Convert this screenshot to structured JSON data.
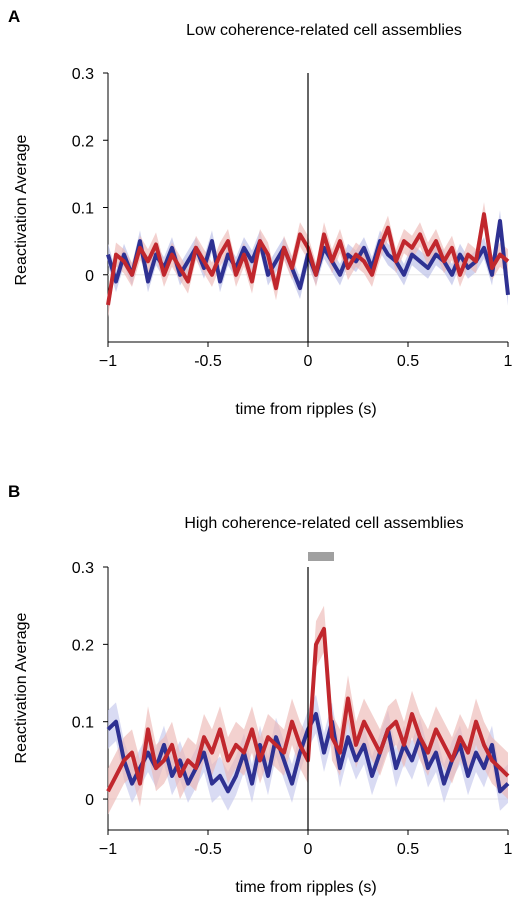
{
  "figure": {
    "panel_a_letter": "A",
    "panel_b_letter": "B"
  },
  "chart_data": [
    {
      "type": "line",
      "title": "Low coherence-related cell assemblies",
      "xlabel": "time from ripples (s)",
      "ylabel": "Reactivation Average",
      "xlim": [
        -1,
        1
      ],
      "ylim": [
        -0.1,
        0.3
      ],
      "xticks": [
        -1,
        -0.5,
        0,
        0.5,
        1
      ],
      "xtick_labels": [
        "−1",
        "-0.5",
        "0",
        "0.5",
        "1"
      ],
      "yticks": [
        0,
        0.1,
        0.2,
        0.3
      ],
      "ytick_labels": [
        "0",
        "0.1",
        "0.2",
        "0.3"
      ],
      "vline_x": 0,
      "grid": false,
      "x": [
        -1.0,
        -0.96,
        -0.92,
        -0.88,
        -0.84,
        -0.8,
        -0.76,
        -0.72,
        -0.68,
        -0.64,
        -0.6,
        -0.56,
        -0.52,
        -0.48,
        -0.44,
        -0.4,
        -0.36,
        -0.32,
        -0.28,
        -0.24,
        -0.2,
        -0.16,
        -0.12,
        -0.08,
        -0.04,
        0.0,
        0.04,
        0.08,
        0.12,
        0.16,
        0.2,
        0.24,
        0.28,
        0.32,
        0.36,
        0.4,
        0.44,
        0.48,
        0.52,
        0.56,
        0.6,
        0.64,
        0.68,
        0.72,
        0.76,
        0.8,
        0.84,
        0.88,
        0.92,
        0.96,
        1.0
      ],
      "series": [
        {
          "color": "#2e3192",
          "band_color": "#b8bde6",
          "values": [
            0.03,
            -0.01,
            0.03,
            0.0,
            0.05,
            -0.01,
            0.03,
            0.01,
            0.04,
            0.0,
            0.02,
            0.04,
            0.01,
            0.05,
            -0.01,
            0.03,
            0.01,
            0.04,
            0.02,
            0.05,
            0.0,
            0.02,
            0.04,
            0.01,
            -0.02,
            0.03,
            0.0,
            0.04,
            0.02,
            0.0,
            0.03,
            0.02,
            0.04,
            0.01,
            0.05,
            0.03,
            0.02,
            0.0,
            0.03,
            0.02,
            0.01,
            0.03,
            0.02,
            0.0,
            0.03,
            0.01,
            0.02,
            0.04,
            0.0,
            0.08,
            -0.03
          ],
          "error": [
            0.016,
            0.016,
            0.016,
            0.016,
            0.016,
            0.016,
            0.016,
            0.016,
            0.016,
            0.016,
            0.016,
            0.016,
            0.016,
            0.016,
            0.016,
            0.016,
            0.016,
            0.016,
            0.016,
            0.016,
            0.016,
            0.016,
            0.016,
            0.016,
            0.016,
            0.016,
            0.016,
            0.016,
            0.016,
            0.016,
            0.016,
            0.016,
            0.016,
            0.016,
            0.016,
            0.016,
            0.016,
            0.016,
            0.016,
            0.016,
            0.016,
            0.016,
            0.016,
            0.016,
            0.016,
            0.016,
            0.016,
            0.016,
            0.016,
            0.016,
            0.016
          ]
        },
        {
          "color": "#c1272d",
          "band_color": "#ecb9b5",
          "values": [
            -0.045,
            0.03,
            0.02,
            0.0,
            0.04,
            0.02,
            0.045,
            0.0,
            0.03,
            0.01,
            -0.01,
            0.04,
            0.02,
            0.0,
            0.03,
            0.05,
            0.0,
            0.03,
            -0.01,
            0.05,
            0.03,
            -0.02,
            0.04,
            0.01,
            0.06,
            0.04,
            0.0,
            0.06,
            0.02,
            0.05,
            0.01,
            0.03,
            0.02,
            0.0,
            0.04,
            0.07,
            0.02,
            0.05,
            0.04,
            0.06,
            0.03,
            0.05,
            0.02,
            0.04,
            0.0,
            0.03,
            0.02,
            0.09,
            0.01,
            0.03,
            0.02
          ],
          "error": [
            0.018,
            0.018,
            0.018,
            0.018,
            0.018,
            0.018,
            0.018,
            0.018,
            0.018,
            0.018,
            0.018,
            0.018,
            0.018,
            0.018,
            0.018,
            0.018,
            0.018,
            0.018,
            0.018,
            0.018,
            0.018,
            0.018,
            0.018,
            0.018,
            0.018,
            0.018,
            0.018,
            0.018,
            0.018,
            0.018,
            0.018,
            0.018,
            0.018,
            0.018,
            0.018,
            0.018,
            0.018,
            0.018,
            0.018,
            0.018,
            0.018,
            0.018,
            0.018,
            0.018,
            0.018,
            0.018,
            0.018,
            0.018,
            0.018,
            0.018,
            0.018
          ]
        }
      ]
    },
    {
      "type": "line",
      "title": "High coherence-related cell assemblies",
      "xlabel": "time from ripples (s)",
      "ylabel": "Reactivation Average",
      "xlim": [
        -1,
        1
      ],
      "ylim": [
        -0.04,
        0.3
      ],
      "xticks": [
        -1,
        -0.5,
        0,
        0.5,
        1
      ],
      "xtick_labels": [
        "−1",
        "-0.5",
        "0",
        "0.5",
        "1"
      ],
      "yticks": [
        0,
        0.1,
        0.2,
        0.3
      ],
      "ytick_labels": [
        "0",
        "0.1",
        "0.2",
        "0.3"
      ],
      "vline_x": 0,
      "grid": false,
      "significance_bar": [
        0.0,
        0.13
      ],
      "x": [
        -1.0,
        -0.96,
        -0.92,
        -0.88,
        -0.84,
        -0.8,
        -0.76,
        -0.72,
        -0.68,
        -0.64,
        -0.6,
        -0.56,
        -0.52,
        -0.48,
        -0.44,
        -0.4,
        -0.36,
        -0.32,
        -0.28,
        -0.24,
        -0.2,
        -0.16,
        -0.12,
        -0.08,
        -0.04,
        0.0,
        0.04,
        0.08,
        0.12,
        0.16,
        0.2,
        0.24,
        0.28,
        0.32,
        0.36,
        0.4,
        0.44,
        0.48,
        0.52,
        0.56,
        0.6,
        0.64,
        0.68,
        0.72,
        0.76,
        0.8,
        0.84,
        0.88,
        0.92,
        0.96,
        1.0
      ],
      "series": [
        {
          "color": "#2e3192",
          "band_color": "#c4c8ec",
          "values": [
            0.09,
            0.1,
            0.05,
            0.02,
            0.04,
            0.06,
            0.04,
            0.07,
            0.03,
            0.05,
            0.02,
            0.04,
            0.06,
            0.02,
            0.03,
            0.01,
            0.03,
            0.06,
            0.02,
            0.07,
            0.03,
            0.08,
            0.05,
            0.02,
            0.06,
            0.09,
            0.11,
            0.06,
            0.1,
            0.04,
            0.08,
            0.05,
            0.07,
            0.03,
            0.06,
            0.09,
            0.04,
            0.07,
            0.05,
            0.08,
            0.04,
            0.06,
            0.02,
            0.05,
            0.07,
            0.03,
            0.06,
            0.04,
            0.07,
            0.01,
            0.02
          ],
          "error": [
            0.025,
            0.025,
            0.025,
            0.025,
            0.025,
            0.025,
            0.025,
            0.025,
            0.025,
            0.025,
            0.025,
            0.025,
            0.025,
            0.025,
            0.025,
            0.025,
            0.025,
            0.025,
            0.025,
            0.025,
            0.025,
            0.025,
            0.025,
            0.025,
            0.025,
            0.025,
            0.025,
            0.025,
            0.025,
            0.025,
            0.025,
            0.025,
            0.025,
            0.025,
            0.025,
            0.025,
            0.025,
            0.025,
            0.025,
            0.025,
            0.025,
            0.025,
            0.025,
            0.025,
            0.025,
            0.025,
            0.025,
            0.025,
            0.025,
            0.025,
            0.025
          ]
        },
        {
          "color": "#c1272d",
          "band_color": "#ecb9b5",
          "values": [
            0.01,
            0.03,
            0.05,
            0.06,
            0.02,
            0.09,
            0.04,
            0.05,
            0.07,
            0.03,
            0.05,
            0.04,
            0.08,
            0.06,
            0.09,
            0.05,
            0.07,
            0.06,
            0.09,
            0.05,
            0.08,
            0.07,
            0.06,
            0.1,
            0.07,
            0.05,
            0.2,
            0.22,
            0.08,
            0.06,
            0.13,
            0.07,
            0.1,
            0.08,
            0.06,
            0.09,
            0.1,
            0.07,
            0.11,
            0.08,
            0.06,
            0.09,
            0.07,
            0.05,
            0.08,
            0.06,
            0.1,
            0.07,
            0.05,
            0.04,
            0.03
          ],
          "error": [
            0.03,
            0.03,
            0.03,
            0.03,
            0.03,
            0.03,
            0.03,
            0.03,
            0.03,
            0.03,
            0.03,
            0.03,
            0.03,
            0.03,
            0.03,
            0.03,
            0.03,
            0.03,
            0.03,
            0.03,
            0.03,
            0.03,
            0.03,
            0.03,
            0.03,
            0.03,
            0.03,
            0.03,
            0.03,
            0.03,
            0.03,
            0.03,
            0.03,
            0.03,
            0.03,
            0.03,
            0.03,
            0.03,
            0.03,
            0.03,
            0.03,
            0.03,
            0.03,
            0.03,
            0.03,
            0.03,
            0.03,
            0.03,
            0.03,
            0.03,
            0.03
          ]
        }
      ]
    }
  ]
}
